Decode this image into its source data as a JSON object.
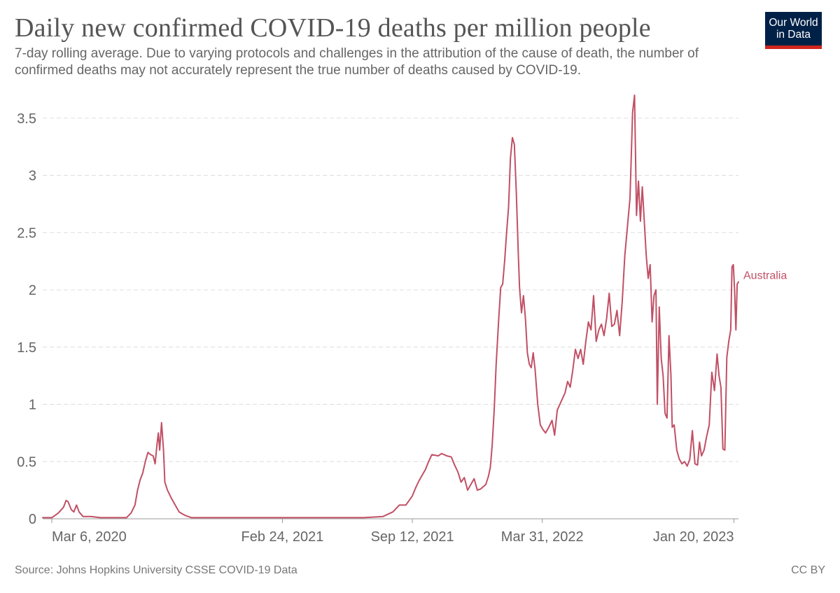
{
  "header": {
    "title": "Daily new confirmed COVID-19 deaths per million people",
    "subtitle": "7-day rolling average. Due to varying protocols and challenges in the attribution of the cause of death, the number of confirmed deaths may not accurately represent the true number of deaths caused by COVID-19."
  },
  "logo": {
    "line1": "Our World",
    "line2": "in Data",
    "bg_color": "#002147",
    "accent_color": "#ce261e"
  },
  "footer": {
    "source": "Source: Johns Hopkins University CSSE COVID-19 Data",
    "license": "CC BY"
  },
  "chart_data": {
    "type": "line",
    "title": "Daily new confirmed COVID-19 deaths per million people",
    "xlabel": "",
    "ylabel": "",
    "ylim": [
      0,
      3.5
    ],
    "grid": "horizontal dashed",
    "x_tick_labels": [
      "Mar 6, 2020",
      "Feb 24, 2021",
      "Sep 12, 2021",
      "Mar 31, 2022",
      "Jan 20, 2023"
    ],
    "x_tick_days": [
      0,
      355,
      555,
      755,
      1050
    ],
    "y_ticks": [
      0,
      0.5,
      1,
      1.5,
      2,
      2.5,
      3,
      3.5
    ],
    "y_tick_labels": [
      "0",
      "0.5",
      "1",
      "1.5",
      "2",
      "2.5",
      "3",
      "3.5"
    ],
    "x_domain_days": [
      -14,
      1057
    ],
    "series": [
      {
        "name": "Australia",
        "color": "#c15065",
        "points": [
          [
            -14,
            0.01
          ],
          [
            0,
            0.01
          ],
          [
            10,
            0.05
          ],
          [
            18,
            0.1
          ],
          [
            22,
            0.16
          ],
          [
            25,
            0.15
          ],
          [
            30,
            0.08
          ],
          [
            34,
            0.06
          ],
          [
            38,
            0.12
          ],
          [
            42,
            0.06
          ],
          [
            48,
            0.02
          ],
          [
            60,
            0.02
          ],
          [
            75,
            0.01
          ],
          [
            90,
            0.01
          ],
          [
            115,
            0.01
          ],
          [
            122,
            0.05
          ],
          [
            128,
            0.12
          ],
          [
            132,
            0.25
          ],
          [
            136,
            0.34
          ],
          [
            140,
            0.4
          ],
          [
            144,
            0.5
          ],
          [
            148,
            0.58
          ],
          [
            152,
            0.56
          ],
          [
            156,
            0.55
          ],
          [
            159,
            0.48
          ],
          [
            162,
            0.65
          ],
          [
            164,
            0.75
          ],
          [
            166,
            0.6
          ],
          [
            169,
            0.84
          ],
          [
            172,
            0.6
          ],
          [
            174,
            0.32
          ],
          [
            178,
            0.25
          ],
          [
            184,
            0.18
          ],
          [
            190,
            0.12
          ],
          [
            196,
            0.06
          ],
          [
            205,
            0.03
          ],
          [
            215,
            0.01
          ],
          [
            250,
            0.01
          ],
          [
            300,
            0.01
          ],
          [
            400,
            0.01
          ],
          [
            480,
            0.01
          ],
          [
            510,
            0.02
          ],
          [
            525,
            0.06
          ],
          [
            535,
            0.12
          ],
          [
            545,
            0.12
          ],
          [
            555,
            0.2
          ],
          [
            560,
            0.27
          ],
          [
            565,
            0.33
          ],
          [
            570,
            0.38
          ],
          [
            575,
            0.43
          ],
          [
            580,
            0.5
          ],
          [
            585,
            0.56
          ],
          [
            595,
            0.55
          ],
          [
            600,
            0.57
          ],
          [
            608,
            0.55
          ],
          [
            615,
            0.54
          ],
          [
            620,
            0.47
          ],
          [
            625,
            0.41
          ],
          [
            630,
            0.32
          ],
          [
            635,
            0.36
          ],
          [
            640,
            0.25
          ],
          [
            645,
            0.3
          ],
          [
            650,
            0.35
          ],
          [
            655,
            0.25
          ],
          [
            660,
            0.26
          ],
          [
            668,
            0.3
          ],
          [
            672,
            0.37
          ],
          [
            675,
            0.45
          ],
          [
            678,
            0.65
          ],
          [
            681,
            0.95
          ],
          [
            684,
            1.35
          ],
          [
            688,
            1.75
          ],
          [
            691,
            2.02
          ],
          [
            694,
            2.05
          ],
          [
            697,
            2.25
          ],
          [
            700,
            2.5
          ],
          [
            703,
            2.72
          ],
          [
            706,
            3.15
          ],
          [
            709,
            3.33
          ],
          [
            712,
            3.27
          ],
          [
            715,
            2.85
          ],
          [
            718,
            2.32
          ],
          [
            720,
            2.02
          ],
          [
            723,
            1.8
          ],
          [
            726,
            1.95
          ],
          [
            729,
            1.75
          ],
          [
            732,
            1.45
          ],
          [
            735,
            1.35
          ],
          [
            738,
            1.32
          ],
          [
            741,
            1.45
          ],
          [
            744,
            1.3
          ],
          [
            748,
            1.0
          ],
          [
            752,
            0.82
          ],
          [
            756,
            0.78
          ],
          [
            760,
            0.75
          ],
          [
            765,
            0.8
          ],
          [
            770,
            0.86
          ],
          [
            774,
            0.73
          ],
          [
            778,
            0.95
          ],
          [
            782,
            1.0
          ],
          [
            786,
            1.05
          ],
          [
            790,
            1.1
          ],
          [
            794,
            1.2
          ],
          [
            798,
            1.15
          ],
          [
            802,
            1.3
          ],
          [
            806,
            1.48
          ],
          [
            810,
            1.4
          ],
          [
            814,
            1.48
          ],
          [
            818,
            1.35
          ],
          [
            822,
            1.55
          ],
          [
            826,
            1.72
          ],
          [
            830,
            1.65
          ],
          [
            834,
            1.95
          ],
          [
            838,
            1.55
          ],
          [
            842,
            1.65
          ],
          [
            846,
            1.7
          ],
          [
            850,
            1.6
          ],
          [
            854,
            1.75
          ],
          [
            858,
            1.97
          ],
          [
            862,
            1.68
          ],
          [
            866,
            1.7
          ],
          [
            870,
            1.82
          ],
          [
            874,
            1.6
          ],
          [
            878,
            1.9
          ],
          [
            882,
            2.3
          ],
          [
            886,
            2.55
          ],
          [
            890,
            2.8
          ],
          [
            894,
            3.55
          ],
          [
            897,
            3.7
          ],
          [
            900,
            2.65
          ],
          [
            903,
            2.95
          ],
          [
            906,
            2.6
          ],
          [
            909,
            2.9
          ],
          [
            912,
            2.6
          ],
          [
            915,
            2.3
          ],
          [
            918,
            2.1
          ],
          [
            921,
            2.22
          ],
          [
            924,
            1.72
          ],
          [
            927,
            1.95
          ],
          [
            930,
            2.0
          ],
          [
            932,
            1.0
          ],
          [
            935,
            1.85
          ],
          [
            938,
            1.4
          ],
          [
            941,
            1.25
          ],
          [
            944,
            0.92
          ],
          [
            947,
            0.88
          ],
          [
            950,
            1.6
          ],
          [
            953,
            1.25
          ],
          [
            955,
            0.8
          ],
          [
            958,
            0.82
          ],
          [
            962,
            0.6
          ],
          [
            966,
            0.52
          ],
          [
            970,
            0.48
          ],
          [
            974,
            0.5
          ],
          [
            978,
            0.46
          ],
          [
            982,
            0.52
          ],
          [
            986,
            0.77
          ],
          [
            990,
            0.48
          ],
          [
            994,
            0.47
          ],
          [
            997,
            0.67
          ],
          [
            1000,
            0.55
          ],
          [
            1004,
            0.6
          ],
          [
            1008,
            0.72
          ],
          [
            1012,
            0.82
          ],
          [
            1016,
            1.28
          ],
          [
            1020,
            1.12
          ],
          [
            1024,
            1.44
          ],
          [
            1027,
            1.25
          ],
          [
            1030,
            1.15
          ],
          [
            1033,
            0.61
          ],
          [
            1036,
            0.6
          ],
          [
            1039,
            1.41
          ],
          [
            1042,
            1.55
          ],
          [
            1045,
            1.65
          ],
          [
            1047,
            2.2
          ],
          [
            1049,
            2.22
          ],
          [
            1051,
            2.0
          ],
          [
            1053,
            1.65
          ],
          [
            1055,
            2.05
          ],
          [
            1057,
            2.07
          ]
        ]
      }
    ]
  }
}
